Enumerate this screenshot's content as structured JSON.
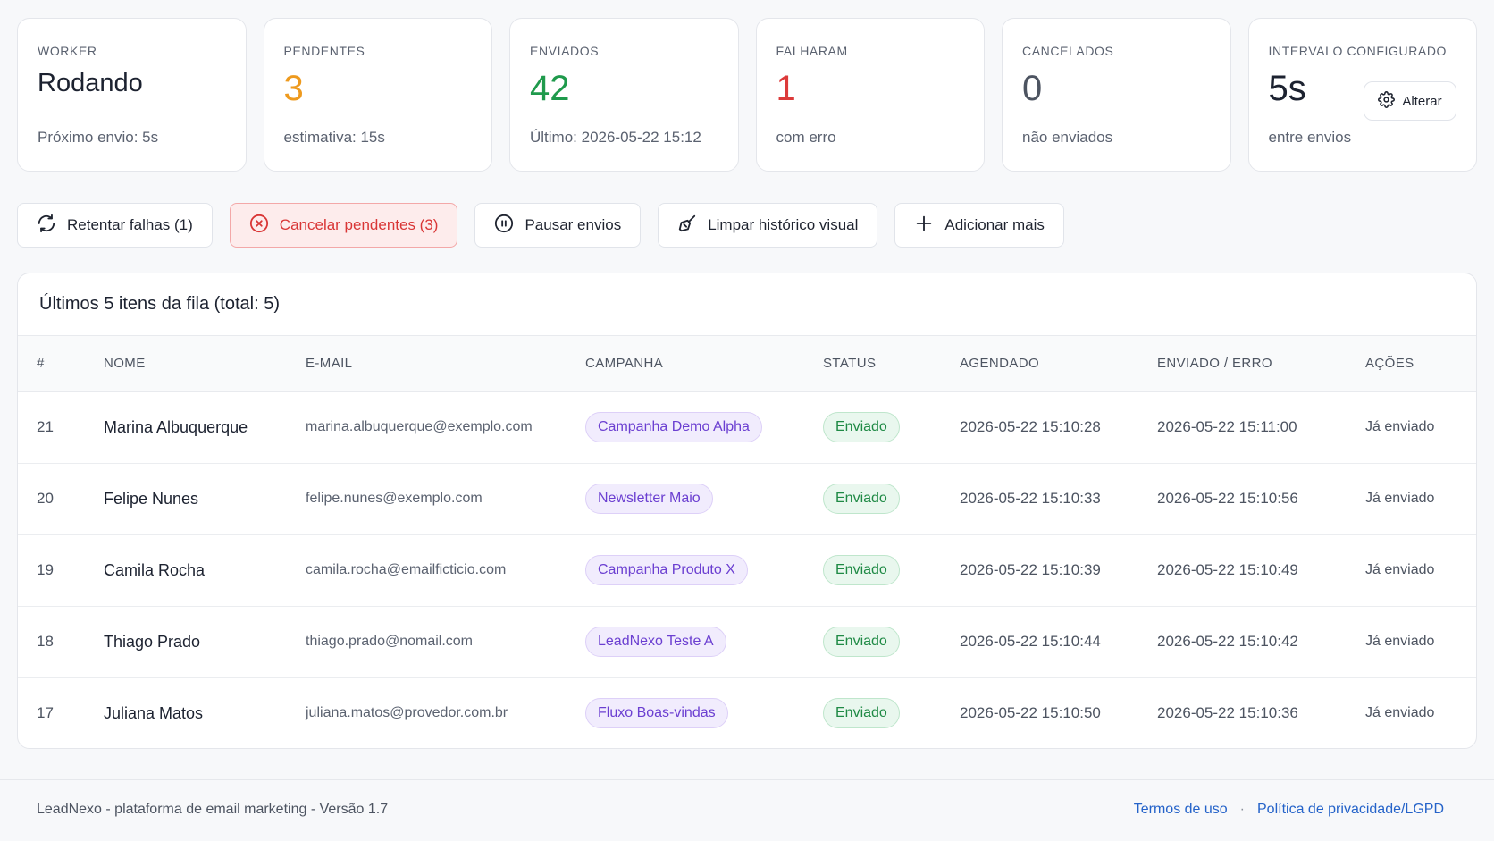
{
  "stats": [
    {
      "label": "WORKER",
      "value": "Rodando",
      "sub": "Próximo envio: 5s"
    },
    {
      "label": "PENDENTES",
      "value": "3",
      "sub": "estimativa: 15s"
    },
    {
      "label": "ENVIADOS",
      "value": "42",
      "sub": "Último: 2026-05-22 15:12"
    },
    {
      "label": "FALHARAM",
      "value": "1",
      "sub": "com erro"
    },
    {
      "label": "CANCELADOS",
      "value": "0",
      "sub": "não enviados"
    },
    {
      "label": "INTERVALO CONFIGURADO",
      "value": "5s",
      "sub": "entre envios",
      "button": "Alterar"
    }
  ],
  "actions": {
    "retry": "Retentar falhas (1)",
    "cancel": "Cancelar pendentes (3)",
    "pause": "Pausar envios",
    "clear": "Limpar histórico visual",
    "add": "Adicionar mais"
  },
  "table": {
    "title": "Últimos 5 itens da fila (total: 5)",
    "headers": [
      "#",
      "NOME",
      "E-MAIL",
      "CAMPANHA",
      "STATUS",
      "AGENDADO",
      "ENVIADO / ERRO",
      "AÇÕES"
    ],
    "rows": [
      {
        "id": "21",
        "name": "Marina Albuquerque",
        "email": "marina.albuquerque@exemplo.com",
        "campaign": "Campanha Demo Alpha",
        "status": "Enviado",
        "scheduled": "2026-05-22 15:10:28",
        "sent": "2026-05-22 15:11:00",
        "action": "Já enviado"
      },
      {
        "id": "20",
        "name": "Felipe Nunes",
        "email": "felipe.nunes@exemplo.com",
        "campaign": "Newsletter Maio",
        "status": "Enviado",
        "scheduled": "2026-05-22 15:10:33",
        "sent": "2026-05-22 15:10:56",
        "action": "Já enviado"
      },
      {
        "id": "19",
        "name": "Camila Rocha",
        "email": "camila.rocha@emailficticio.com",
        "campaign": "Campanha Produto X",
        "status": "Enviado",
        "scheduled": "2026-05-22 15:10:39",
        "sent": "2026-05-22 15:10:49",
        "action": "Já enviado"
      },
      {
        "id": "18",
        "name": "Thiago Prado",
        "email": "thiago.prado@nomail.com",
        "campaign": "LeadNexo Teste A",
        "status": "Enviado",
        "scheduled": "2026-05-22 15:10:44",
        "sent": "2026-05-22 15:10:42",
        "action": "Já enviado"
      },
      {
        "id": "17",
        "name": "Juliana Matos",
        "email": "juliana.matos@provedor.com.br",
        "campaign": "Fluxo Boas-vindas",
        "status": "Enviado",
        "scheduled": "2026-05-22 15:10:50",
        "sent": "2026-05-22 15:10:36",
        "action": "Já enviado"
      }
    ]
  },
  "footer": {
    "text": "LeadNexo - plataforma de email marketing - Versão 1.7",
    "separator": "·",
    "terms": "Termos de uso",
    "privacy": "Política de privacidade/LGPD"
  },
  "colors": {
    "pending": "#ee9a1e",
    "sent": "#1f9a4c",
    "failed": "#dc3a3a",
    "danger_bg": "#fdecec",
    "campaign_pill": "#6b3fd1",
    "status_pill": "#1f8a45",
    "link": "#2563c9"
  },
  "icons": {
    "retry": "refresh-icon",
    "cancel": "x-circle-icon",
    "pause": "pause-circle-icon",
    "clear": "broom-icon",
    "add": "plus-icon",
    "alterar": "gear-icon"
  }
}
